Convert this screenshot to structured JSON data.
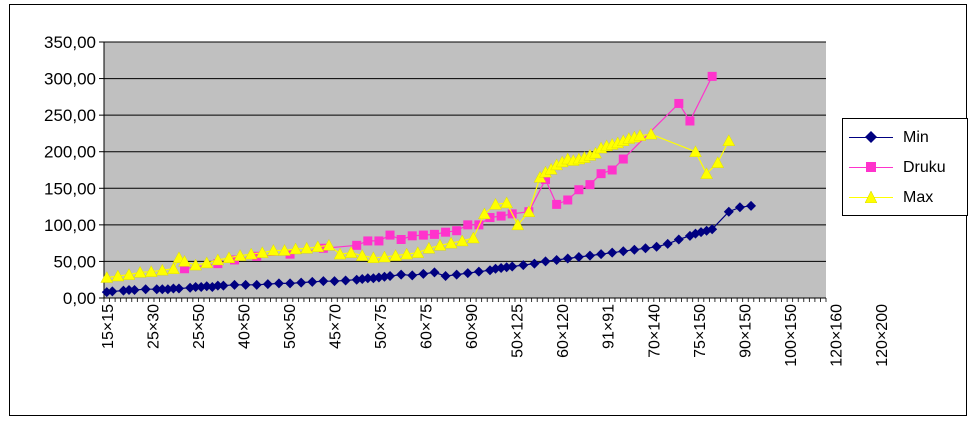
{
  "chart_data": {
    "type": "scatter",
    "title": "",
    "xlabel": "",
    "ylabel": "",
    "ylim": [
      0,
      350
    ],
    "y_ticks": [
      "0,00",
      "50,00",
      "100,00",
      "150,00",
      "200,00",
      "250,00",
      "300,00",
      "350,00"
    ],
    "x_count": 130,
    "x_tick_labels": [
      {
        "i": 0,
        "label": "15×15"
      },
      {
        "i": 10,
        "label": "25×30"
      },
      {
        "i": 20,
        "label": "25×50"
      },
      {
        "i": 30,
        "label": "40×50"
      },
      {
        "i": 40,
        "label": "50×50"
      },
      {
        "i": 50,
        "label": "45×70"
      },
      {
        "i": 60,
        "label": "50×75"
      },
      {
        "i": 70,
        "label": "60×75"
      },
      {
        "i": 80,
        "label": "60×90"
      },
      {
        "i": 90,
        "label": "50×125"
      },
      {
        "i": 100,
        "label": "60×120"
      },
      {
        "i": 110,
        "label": "91×91"
      },
      {
        "i": 120,
        "label": "70×140"
      },
      {
        "i": 130,
        "label": "75×150"
      },
      {
        "i": 140,
        "label": "90×150"
      },
      {
        "i": 150,
        "label": "100×150"
      },
      {
        "i": 160,
        "label": "120×160"
      },
      {
        "i": 170,
        "label": "120×200"
      }
    ],
    "grid": true,
    "legend_position": "right",
    "series": [
      {
        "name": "Min",
        "color": "#000080",
        "marker": "diamond",
        "points": [
          [
            0,
            8
          ],
          [
            1,
            9
          ],
          [
            3,
            10
          ],
          [
            4,
            11
          ],
          [
            5,
            11
          ],
          [
            7,
            12
          ],
          [
            9,
            12
          ],
          [
            10,
            12
          ],
          [
            11,
            12
          ],
          [
            12,
            13
          ],
          [
            13,
            13
          ],
          [
            15,
            14
          ],
          [
            16,
            15
          ],
          [
            17,
            15
          ],
          [
            18,
            16
          ],
          [
            19,
            15
          ],
          [
            20,
            17
          ],
          [
            21,
            17
          ],
          [
            23,
            18
          ],
          [
            25,
            18
          ],
          [
            27,
            18
          ],
          [
            29,
            19
          ],
          [
            31,
            20
          ],
          [
            33,
            20
          ],
          [
            35,
            21
          ],
          [
            37,
            22
          ],
          [
            39,
            23
          ],
          [
            41,
            23
          ],
          [
            43,
            24
          ],
          [
            45,
            25
          ],
          [
            46,
            26
          ],
          [
            47,
            27
          ],
          [
            48,
            27
          ],
          [
            49,
            28
          ],
          [
            50,
            29
          ],
          [
            51,
            30
          ],
          [
            53,
            32
          ],
          [
            55,
            31
          ],
          [
            57,
            33
          ],
          [
            59,
            35
          ],
          [
            61,
            30
          ],
          [
            63,
            32
          ],
          [
            65,
            34
          ],
          [
            67,
            36
          ],
          [
            69,
            38
          ],
          [
            70,
            40
          ],
          [
            71,
            41
          ],
          [
            72,
            42
          ],
          [
            73,
            43
          ],
          [
            75,
            45
          ],
          [
            77,
            47
          ],
          [
            79,
            50
          ],
          [
            81,
            52
          ],
          [
            83,
            54
          ],
          [
            85,
            56
          ],
          [
            87,
            58
          ],
          [
            89,
            60
          ],
          [
            91,
            62
          ],
          [
            93,
            64
          ],
          [
            95,
            66
          ],
          [
            97,
            68
          ],
          [
            99,
            70
          ],
          [
            101,
            74
          ],
          [
            103,
            80
          ],
          [
            105,
            85
          ],
          [
            106,
            88
          ],
          [
            107,
            90
          ],
          [
            108,
            92
          ],
          [
            109,
            94
          ],
          [
            112,
            118
          ],
          [
            114,
            124
          ],
          [
            116,
            126
          ]
        ]
      },
      {
        "name": "Druku",
        "color": "#ff33cc",
        "marker": "square",
        "points": [
          [
            14,
            40
          ],
          [
            20,
            47
          ],
          [
            23,
            52
          ],
          [
            27,
            57
          ],
          [
            33,
            60
          ],
          [
            39,
            68
          ],
          [
            45,
            72
          ],
          [
            47,
            78
          ],
          [
            49,
            78
          ],
          [
            51,
            86
          ],
          [
            53,
            80
          ],
          [
            55,
            85
          ],
          [
            57,
            86
          ],
          [
            59,
            87
          ],
          [
            61,
            90
          ],
          [
            63,
            92
          ],
          [
            65,
            100
          ],
          [
            67,
            100
          ],
          [
            69,
            110
          ],
          [
            71,
            112
          ],
          [
            73,
            115
          ],
          [
            76,
            118
          ],
          [
            79,
            162
          ],
          [
            81,
            128
          ],
          [
            83,
            134
          ],
          [
            85,
            148
          ],
          [
            87,
            155
          ],
          [
            89,
            170
          ],
          [
            91,
            175
          ],
          [
            93,
            190
          ],
          [
            103,
            266
          ],
          [
            105,
            242
          ],
          [
            109,
            303
          ]
        ]
      },
      {
        "name": "Max",
        "color": "#ffff00",
        "marker": "triangle",
        "points": [
          [
            0,
            28
          ],
          [
            2,
            30
          ],
          [
            4,
            32
          ],
          [
            6,
            35
          ],
          [
            8,
            36
          ],
          [
            10,
            38
          ],
          [
            12,
            40
          ],
          [
            13,
            55
          ],
          [
            14,
            50
          ],
          [
            16,
            45
          ],
          [
            18,
            48
          ],
          [
            20,
            52
          ],
          [
            22,
            55
          ],
          [
            24,
            58
          ],
          [
            26,
            60
          ],
          [
            28,
            62
          ],
          [
            30,
            65
          ],
          [
            32,
            65
          ],
          [
            34,
            67
          ],
          [
            36,
            68
          ],
          [
            38,
            70
          ],
          [
            40,
            72
          ],
          [
            42,
            60
          ],
          [
            44,
            62
          ],
          [
            46,
            58
          ],
          [
            48,
            55
          ],
          [
            50,
            56
          ],
          [
            52,
            58
          ],
          [
            54,
            60
          ],
          [
            56,
            62
          ],
          [
            58,
            68
          ],
          [
            60,
            72
          ],
          [
            62,
            75
          ],
          [
            64,
            78
          ],
          [
            66,
            82
          ],
          [
            68,
            115
          ],
          [
            70,
            128
          ],
          [
            72,
            130
          ],
          [
            74,
            100
          ],
          [
            76,
            118
          ],
          [
            78,
            165
          ],
          [
            79,
            172
          ],
          [
            80,
            176
          ],
          [
            81,
            182
          ],
          [
            82,
            186
          ],
          [
            83,
            190
          ],
          [
            84,
            188
          ],
          [
            85,
            190
          ],
          [
            86,
            192
          ],
          [
            87,
            195
          ],
          [
            88,
            198
          ],
          [
            89,
            205
          ],
          [
            90,
            208
          ],
          [
            91,
            210
          ],
          [
            92,
            212
          ],
          [
            93,
            215
          ],
          [
            94,
            218
          ],
          [
            95,
            220
          ],
          [
            96,
            222
          ],
          [
            98,
            224
          ],
          [
            106,
            200
          ],
          [
            108,
            170
          ],
          [
            110,
            185
          ],
          [
            112,
            215
          ]
        ]
      }
    ]
  }
}
